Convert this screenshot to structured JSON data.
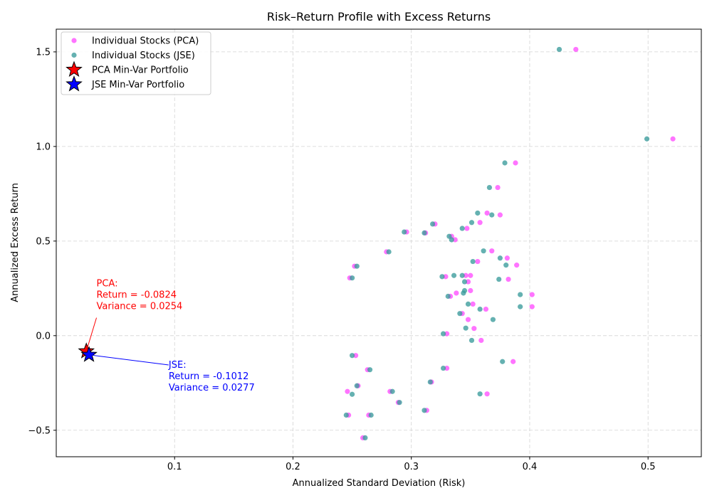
{
  "chart_data": {
    "type": "scatter",
    "title": "Risk–Return Profile with Excess Returns",
    "xlabel": "Annualized Standard Deviation (Risk)",
    "ylabel": "Annualized Excess Return",
    "xlim": [
      0.0,
      0.545
    ],
    "ylim": [
      -0.64,
      1.62
    ],
    "x_ticks": [
      0.1,
      0.2,
      0.3,
      0.4,
      0.5
    ],
    "y_ticks": [
      -0.5,
      0.0,
      0.5,
      1.0,
      1.5
    ],
    "x_tick_labels": [
      "0.1",
      "0.2",
      "0.3",
      "0.4",
      "0.5"
    ],
    "y_tick_labels": [
      "−0.5",
      "0.0",
      "0.5",
      "1.0",
      "1.5"
    ],
    "grid": true,
    "legend_position": "top-left",
    "legend": [
      {
        "label": "Individual Stocks (PCA)",
        "marker": "dot",
        "color": "#ff4dff"
      },
      {
        "label": "Individual Stocks (JSE)",
        "marker": "dot",
        "color": "#3a9b9b"
      },
      {
        "label": "PCA Min-Var Portfolio",
        "marker": "star",
        "color": "#ff0000"
      },
      {
        "label": "JSE Min-Var Portfolio",
        "marker": "star",
        "color": "#0000ff"
      }
    ],
    "series": [
      {
        "name": "Individual Stocks (PCA)",
        "color": "#ff4dff",
        "points": [
          [
            0.439,
            1.513
          ],
          [
            0.521,
            1.04
          ],
          [
            0.388,
            0.913
          ],
          [
            0.373,
            0.783
          ],
          [
            0.364,
            0.648
          ],
          [
            0.375,
            0.638
          ],
          [
            0.358,
            0.598
          ],
          [
            0.347,
            0.567
          ],
          [
            0.337,
            0.507
          ],
          [
            0.381,
            0.41
          ],
          [
            0.389,
            0.373
          ],
          [
            0.382,
            0.298
          ],
          [
            0.402,
            0.217
          ],
          [
            0.402,
            0.153
          ],
          [
            0.352,
            0.167
          ],
          [
            0.368,
            0.448
          ],
          [
            0.363,
            0.14
          ],
          [
            0.353,
            0.038
          ],
          [
            0.348,
            0.085
          ],
          [
            0.359,
            -0.025
          ],
          [
            0.386,
            -0.137
          ],
          [
            0.364,
            -0.308
          ],
          [
            0.33,
            -0.172
          ],
          [
            0.313,
            -0.395
          ],
          [
            0.259,
            -0.54
          ],
          [
            0.264,
            -0.42
          ],
          [
            0.247,
            -0.42
          ],
          [
            0.252,
            0.367
          ],
          [
            0.248,
            0.305
          ],
          [
            0.279,
            0.443
          ],
          [
            0.312,
            0.543
          ],
          [
            0.296,
            0.548
          ],
          [
            0.329,
            0.312
          ],
          [
            0.346,
            0.318
          ],
          [
            0.35,
            0.318
          ],
          [
            0.338,
            0.225
          ],
          [
            0.333,
            0.208
          ],
          [
            0.317,
            -0.245
          ],
          [
            0.289,
            -0.353
          ],
          [
            0.255,
            -0.265
          ],
          [
            0.282,
            -0.295
          ],
          [
            0.263,
            -0.18
          ],
          [
            0.246,
            -0.295
          ],
          [
            0.253,
            -0.105
          ],
          [
            0.343,
            0.117
          ],
          [
            0.356,
            0.392
          ],
          [
            0.32,
            0.59
          ],
          [
            0.334,
            0.525
          ],
          [
            0.35,
            0.238
          ],
          [
            0.33,
            0.01
          ],
          [
            0.348,
            0.285
          ]
        ]
      },
      {
        "name": "Individual Stocks (JSE)",
        "color": "#3a9b9b",
        "points": [
          [
            0.425,
            1.513
          ],
          [
            0.499,
            1.04
          ],
          [
            0.379,
            0.913
          ],
          [
            0.366,
            0.783
          ],
          [
            0.356,
            0.648
          ],
          [
            0.368,
            0.638
          ],
          [
            0.351,
            0.598
          ],
          [
            0.343,
            0.567
          ],
          [
            0.334,
            0.507
          ],
          [
            0.375,
            0.41
          ],
          [
            0.38,
            0.373
          ],
          [
            0.374,
            0.298
          ],
          [
            0.392,
            0.217
          ],
          [
            0.392,
            0.153
          ],
          [
            0.348,
            0.167
          ],
          [
            0.361,
            0.448
          ],
          [
            0.358,
            0.14
          ],
          [
            0.351,
            -0.025
          ],
          [
            0.377,
            -0.137
          ],
          [
            0.358,
            -0.308
          ],
          [
            0.327,
            -0.172
          ],
          [
            0.311,
            -0.395
          ],
          [
            0.261,
            -0.54
          ],
          [
            0.266,
            -0.42
          ],
          [
            0.245,
            -0.42
          ],
          [
            0.254,
            0.367
          ],
          [
            0.25,
            0.305
          ],
          [
            0.281,
            0.443
          ],
          [
            0.311,
            0.543
          ],
          [
            0.294,
            0.548
          ],
          [
            0.326,
            0.312
          ],
          [
            0.343,
            0.318
          ],
          [
            0.336,
            0.318
          ],
          [
            0.344,
            0.225
          ],
          [
            0.331,
            0.208
          ],
          [
            0.316,
            -0.245
          ],
          [
            0.29,
            -0.353
          ],
          [
            0.254,
            -0.265
          ],
          [
            0.284,
            -0.295
          ],
          [
            0.265,
            -0.18
          ],
          [
            0.25,
            -0.31
          ],
          [
            0.25,
            -0.105
          ],
          [
            0.341,
            0.117
          ],
          [
            0.352,
            0.392
          ],
          [
            0.318,
            0.59
          ],
          [
            0.332,
            0.525
          ],
          [
            0.345,
            0.238
          ],
          [
            0.327,
            0.01
          ],
          [
            0.345,
            0.285
          ],
          [
            0.369,
            0.085
          ],
          [
            0.346,
            0.04
          ]
        ]
      },
      {
        "name": "PCA Min-Var Portfolio",
        "color": "#ff0000",
        "points": [
          [
            0.0254,
            -0.0824
          ]
        ]
      },
      {
        "name": "JSE Min-Var Portfolio",
        "color": "#0000ff",
        "points": [
          [
            0.0277,
            -0.1012
          ]
        ]
      }
    ],
    "annotations": [
      {
        "id": "pca",
        "lines": [
          "PCA:",
          "Return = -0.0824",
          "Variance = 0.0254"
        ],
        "color": "#ff0000",
        "x": 0.0254,
        "y": -0.0824,
        "text_x": 0.034,
        "text_y": 0.26
      },
      {
        "id": "jse",
        "lines": [
          "JSE:",
          "Return = -0.1012",
          "Variance = 0.0277"
        ],
        "color": "#0000ff",
        "x": 0.0277,
        "y": -0.1012,
        "text_x": 0.095,
        "text_y": -0.17
      }
    ]
  }
}
